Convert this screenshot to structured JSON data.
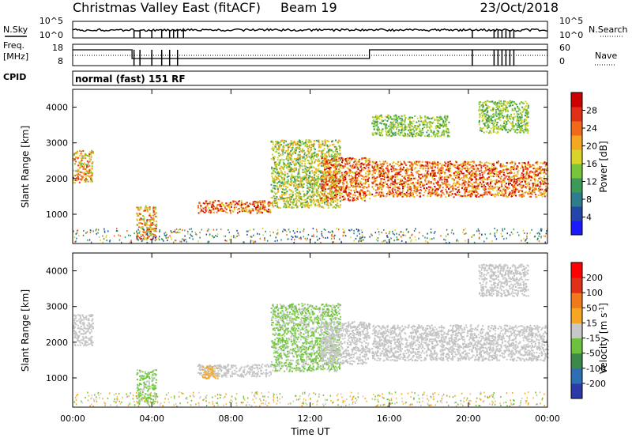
{
  "header": {
    "title": "Christmas Valley East (fitACF)",
    "beam": "Beam 19",
    "date": "23/Oct/2018",
    "cpid_label": "CPID",
    "cpid_value": "normal (fast) 151 RF",
    "nsky_label": "N.Sky",
    "nsearch_label": "N.Search",
    "freq_label_1": "Freq.",
    "freq_label_2": "[MHz]",
    "nave_label": "Nave",
    "nsky_ticks": [
      "10^5",
      "10^0"
    ],
    "nsearch_ticks": [
      "10^5",
      "10^0"
    ],
    "freq_ticks": [
      "18",
      "8"
    ],
    "nave_ticks": [
      "60",
      "0"
    ]
  },
  "chart_data": [
    {
      "type": "heatmap",
      "title": "Power",
      "xlabel": "Time UT",
      "ylabel": "Slant Range [km]",
      "x_ticks": [
        "00:00",
        "04:00",
        "08:00",
        "12:00",
        "16:00",
        "20:00",
        "00:00"
      ],
      "xlim_hours": [
        0,
        24
      ],
      "y_ticks": [
        1000,
        2000,
        3000,
        4000
      ],
      "ylim": [
        180,
        4500
      ],
      "colorbar_label": "Power [dB]",
      "colorbar_ticks": [
        "4",
        "8",
        "12",
        "16",
        "20",
        "24",
        "28"
      ],
      "colorbar_colors": [
        "#1a1aff",
        "#2446a8",
        "#2e7d8c",
        "#3b9a57",
        "#78c43a",
        "#d8d42a",
        "#f5a623",
        "#f06a1a",
        "#e03018",
        "#cc0000"
      ],
      "regions": [
        {
          "t0": 0.0,
          "t1": 1.0,
          "r0": 1900,
          "r1": 2800,
          "level": "mid-high"
        },
        {
          "t0": 3.2,
          "t1": 4.2,
          "r0": 300,
          "r1": 1250,
          "level": "mid-high"
        },
        {
          "t0": 6.3,
          "t1": 10.0,
          "r0": 1050,
          "r1": 1400,
          "level": "high"
        },
        {
          "t0": 10.0,
          "t1": 13.5,
          "r0": 1200,
          "r1": 3100,
          "level": "mid"
        },
        {
          "t0": 12.5,
          "t1": 15.0,
          "r0": 1400,
          "r1": 2600,
          "level": "high"
        },
        {
          "t0": 15.1,
          "t1": 24.0,
          "r0": 1500,
          "r1": 2500,
          "level": "high"
        },
        {
          "t0": 15.1,
          "t1": 19.0,
          "r0": 3200,
          "r1": 3800,
          "level": "low"
        },
        {
          "t0": 20.5,
          "t1": 23.0,
          "r0": 3300,
          "r1": 4200,
          "level": "low"
        }
      ]
    },
    {
      "type": "heatmap",
      "title": "Velocity",
      "xlabel": "Time UT",
      "ylabel": "Slant Range [km]",
      "x_ticks": [
        "00:00",
        "04:00",
        "08:00",
        "12:00",
        "16:00",
        "20:00",
        "00:00"
      ],
      "xlim_hours": [
        0,
        24
      ],
      "y_ticks": [
        1000,
        2000,
        3000,
        4000
      ],
      "ylim": [
        180,
        4500
      ],
      "colorbar_label": "Velocity [m s-1]",
      "colorbar_label_main": "Velocity [m s",
      "colorbar_label_exp": "-1",
      "colorbar_label_end": "]",
      "colorbar_ticks": [
        "200",
        "100",
        "50",
        "15",
        "-15",
        "-50",
        "-100",
        "-200"
      ],
      "colorbar_colors": [
        "#2b3aa8",
        "#2e6fb3",
        "#3b8a4a",
        "#6cc23c",
        "#c8c8c8",
        "#f5a623",
        "#f07a1a",
        "#e03018",
        "#ff0000"
      ],
      "regions": [
        {
          "t0": 0.0,
          "t1": 1.0,
          "r0": 1900,
          "r1": 2800,
          "level": "gray"
        },
        {
          "t0": 3.2,
          "t1": 4.2,
          "r0": 300,
          "r1": 1250,
          "level": "green"
        },
        {
          "t0": 6.3,
          "t1": 10.0,
          "r0": 1050,
          "r1": 1400,
          "level": "gray"
        },
        {
          "t0": 6.5,
          "t1": 7.3,
          "r0": 1000,
          "r1": 1350,
          "level": "orange"
        },
        {
          "t0": 10.0,
          "t1": 13.5,
          "r0": 1200,
          "r1": 3100,
          "level": "green"
        },
        {
          "t0": 12.5,
          "t1": 15.0,
          "r0": 1400,
          "r1": 2600,
          "level": "gray"
        },
        {
          "t0": 15.1,
          "t1": 24.0,
          "r0": 1500,
          "r1": 2500,
          "level": "gray"
        },
        {
          "t0": 20.5,
          "t1": 23.0,
          "r0": 3300,
          "r1": 4200,
          "level": "gray"
        }
      ]
    }
  ]
}
